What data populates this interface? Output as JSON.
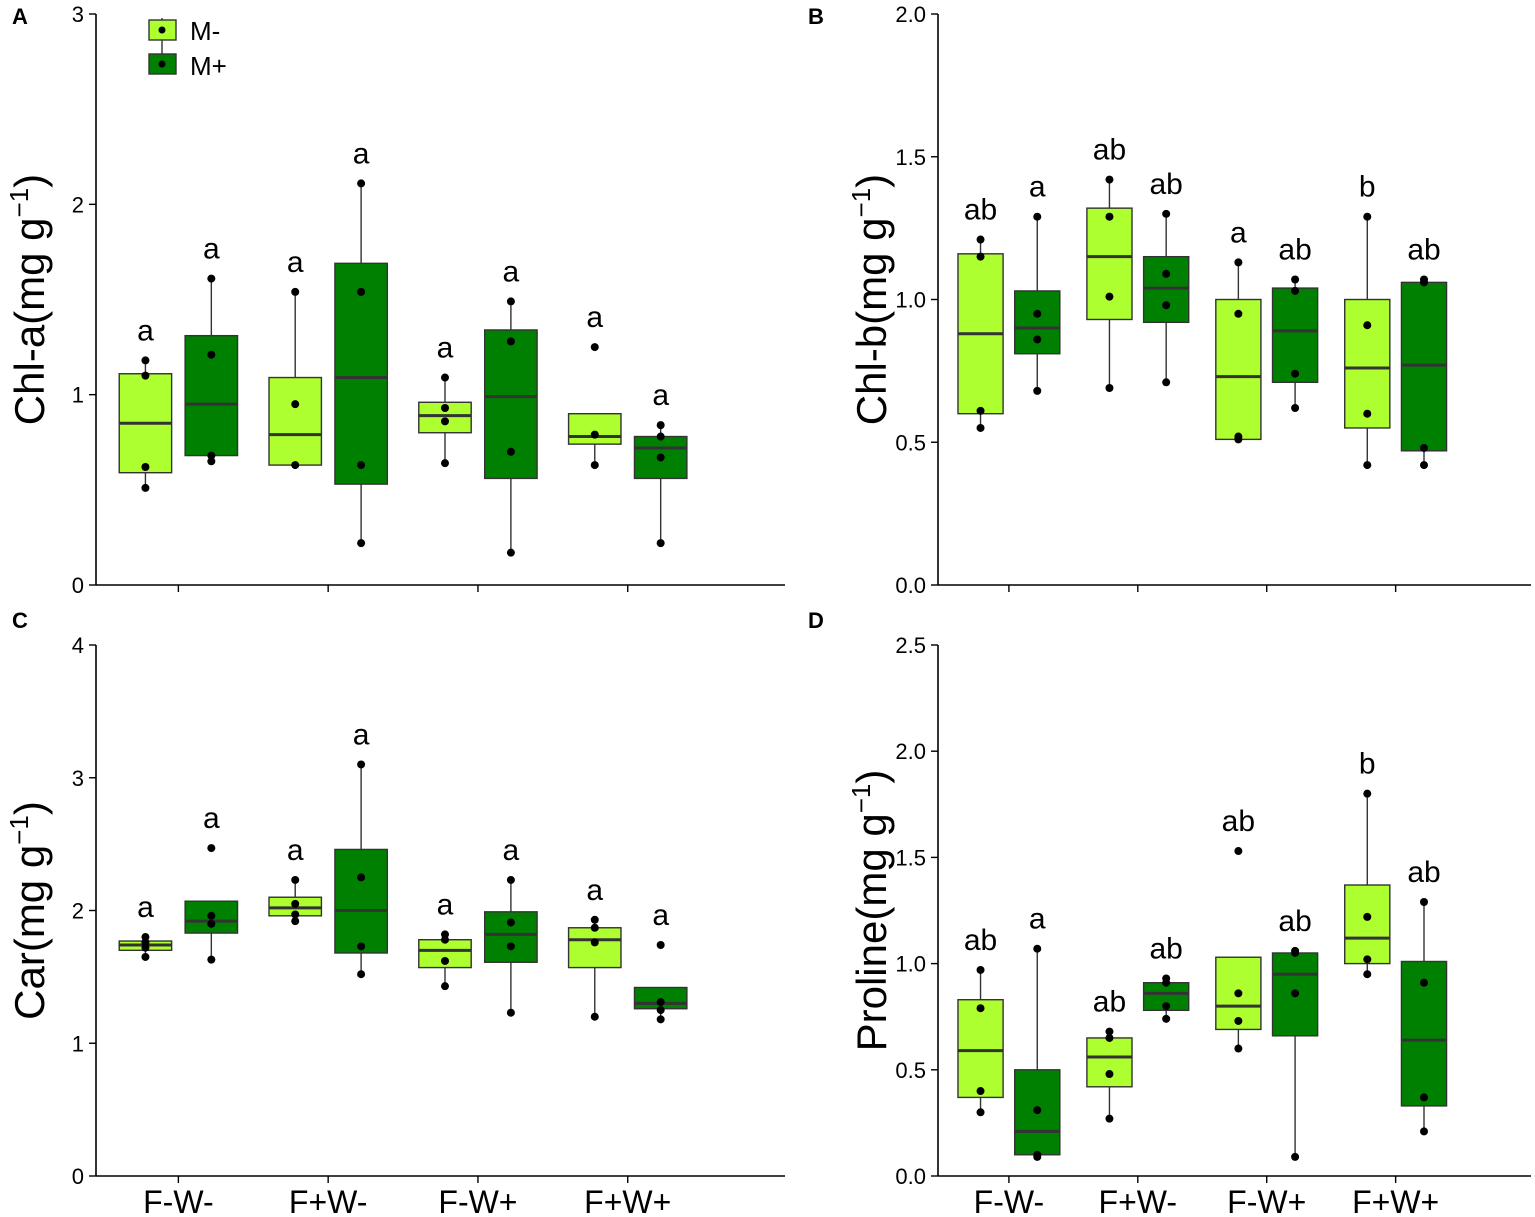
{
  "figure": {
    "groups": [
      "F-W-",
      "F+W-",
      "F-W+",
      "F+W+"
    ],
    "legend": {
      "position": "top-left of panel A",
      "items": [
        {
          "label": "M-",
          "color": "#adff2f"
        },
        {
          "label": "M+",
          "color": "#008000"
        }
      ]
    }
  },
  "chart_data": [
    {
      "panel": "A",
      "type": "box",
      "ylabel": "Chl-a",
      "yunit": "(mg g",
      "yunit_sup": "−1",
      "yunit_close": ")",
      "ylim": [
        0,
        3
      ],
      "yticks": [
        0,
        1,
        2,
        3
      ],
      "ytick_labels": [
        "0",
        "1",
        "2",
        "3"
      ],
      "series": [
        {
          "name": "M-",
          "color": "#adff2f",
          "boxes": [
            {
              "group": "F-W-",
              "low": 0.51,
              "q1": 0.59,
              "median": 0.85,
              "q3": 1.11,
              "high": 1.18,
              "points": [
                0.51,
                0.62,
                1.1,
                1.18
              ],
              "letter": "a"
            },
            {
              "group": "F+W-",
              "low": 0.63,
              "q1": 0.63,
              "median": 0.79,
              "q3": 1.09,
              "high": 1.54,
              "points": [
                0.63,
                0.95,
                1.54
              ],
              "letter": "a"
            },
            {
              "group": "F-W+",
              "low": 0.64,
              "q1": 0.8,
              "median": 0.89,
              "q3": 0.96,
              "high": 1.09,
              "points": [
                0.64,
                0.86,
                0.93,
                1.09
              ],
              "letter": "a"
            },
            {
              "group": "F+W+",
              "low": 0.63,
              "q1": 0.74,
              "median": 0.78,
              "q3": 0.9,
              "high": 0.9,
              "points": [
                0.63,
                0.79,
                1.25
              ],
              "letter": "a"
            }
          ]
        },
        {
          "name": "M+",
          "color": "#008000",
          "boxes": [
            {
              "group": "F-W-",
              "low": 0.65,
              "q1": 0.68,
              "median": 0.95,
              "q3": 1.31,
              "high": 1.61,
              "points": [
                0.65,
                0.68,
                1.21,
                1.61
              ],
              "letter": "a"
            },
            {
              "group": "F+W-",
              "low": 0.22,
              "q1": 0.53,
              "median": 1.09,
              "q3": 1.69,
              "high": 2.11,
              "points": [
                0.22,
                0.63,
                1.54,
                2.11
              ],
              "letter": "a"
            },
            {
              "group": "F-W+",
              "low": 0.17,
              "q1": 0.56,
              "median": 0.99,
              "q3": 1.34,
              "high": 1.49,
              "points": [
                0.17,
                0.7,
                1.28,
                1.49
              ],
              "letter": "a"
            },
            {
              "group": "F+W+",
              "low": 0.22,
              "q1": 0.56,
              "median": 0.72,
              "q3": 0.78,
              "high": 0.84,
              "points": [
                0.22,
                0.67,
                0.78,
                0.84
              ],
              "letter": "a"
            }
          ]
        }
      ]
    },
    {
      "panel": "B",
      "type": "box",
      "ylabel": "Chl-b",
      "yunit": "(mg g",
      "yunit_sup": "−1",
      "yunit_close": ")",
      "ylim": [
        0,
        2
      ],
      "yticks": [
        0,
        0.5,
        1,
        1.5,
        2
      ],
      "ytick_labels": [
        "0.0",
        "0.5",
        "1.0",
        "1.5",
        "2.0"
      ],
      "series": [
        {
          "name": "M-",
          "color": "#adff2f",
          "boxes": [
            {
              "group": "F-W-",
              "low": 0.55,
              "q1": 0.6,
              "median": 0.88,
              "q3": 1.16,
              "high": 1.21,
              "points": [
                0.55,
                0.61,
                1.15,
                1.21
              ],
              "letter": "ab"
            },
            {
              "group": "F+W-",
              "low": 0.69,
              "q1": 0.93,
              "median": 1.15,
              "q3": 1.32,
              "high": 1.42,
              "points": [
                0.69,
                1.01,
                1.29,
                1.42
              ],
              "letter": "ab"
            },
            {
              "group": "F-W+",
              "low": 0.51,
              "q1": 0.51,
              "median": 0.73,
              "q3": 1.0,
              "high": 1.13,
              "points": [
                0.51,
                0.52,
                0.95,
                1.13
              ],
              "letter": "a"
            },
            {
              "group": "F+W+",
              "low": 0.42,
              "q1": 0.55,
              "median": 0.76,
              "q3": 1.0,
              "high": 1.29,
              "points": [
                0.42,
                0.6,
                0.91,
                1.29
              ],
              "letter": "b"
            }
          ]
        },
        {
          "name": "M+",
          "color": "#008000",
          "boxes": [
            {
              "group": "F-W-",
              "low": 0.68,
              "q1": 0.81,
              "median": 0.9,
              "q3": 1.03,
              "high": 1.29,
              "points": [
                0.68,
                0.86,
                0.95,
                1.29
              ],
              "letter": "a"
            },
            {
              "group": "F+W-",
              "low": 0.71,
              "q1": 0.92,
              "median": 1.04,
              "q3": 1.15,
              "high": 1.3,
              "points": [
                0.71,
                0.98,
                1.09,
                1.3
              ],
              "letter": "ab"
            },
            {
              "group": "F-W+",
              "low": 0.62,
              "q1": 0.71,
              "median": 0.89,
              "q3": 1.04,
              "high": 1.07,
              "points": [
                0.62,
                0.74,
                1.03,
                1.07
              ],
              "letter": "ab"
            },
            {
              "group": "F+W+",
              "low": 0.42,
              "q1": 0.47,
              "median": 0.77,
              "q3": 1.06,
              "high": 1.07,
              "points": [
                0.42,
                0.48,
                1.06,
                1.07
              ],
              "letter": "ab"
            }
          ]
        }
      ]
    },
    {
      "panel": "C",
      "type": "box",
      "ylabel": "Car",
      "yunit": "(mg g",
      "yunit_sup": "−1",
      "yunit_close": ")",
      "ylim": [
        0,
        4
      ],
      "yticks": [
        0,
        1,
        2,
        3,
        4
      ],
      "ytick_labels": [
        "0",
        "1",
        "2",
        "3",
        "4"
      ],
      "series": [
        {
          "name": "M-",
          "color": "#adff2f",
          "boxes": [
            {
              "group": "F-W-",
              "low": 1.65,
              "q1": 1.7,
              "median": 1.74,
              "q3": 1.77,
              "high": 1.8,
              "points": [
                1.65,
                1.72,
                1.76,
                1.8
              ],
              "letter": "a"
            },
            {
              "group": "F+W-",
              "low": 1.92,
              "q1": 1.96,
              "median": 2.02,
              "q3": 2.1,
              "high": 2.23,
              "points": [
                1.92,
                1.97,
                2.05,
                2.23
              ],
              "letter": "a"
            },
            {
              "group": "F-W+",
              "low": 1.43,
              "q1": 1.57,
              "median": 1.7,
              "q3": 1.78,
              "high": 1.82,
              "points": [
                1.43,
                1.62,
                1.78,
                1.82
              ],
              "letter": "a"
            },
            {
              "group": "F+W+",
              "low": 1.2,
              "q1": 1.57,
              "median": 1.78,
              "q3": 1.87,
              "high": 1.93,
              "points": [
                1.2,
                1.76,
                1.87,
                1.93
              ],
              "letter": "a"
            }
          ]
        },
        {
          "name": "M+",
          "color": "#008000",
          "boxes": [
            {
              "group": "F-W-",
              "low": 1.63,
              "q1": 1.83,
              "median": 1.92,
              "q3": 2.07,
              "high": 2.07,
              "points": [
                1.63,
                1.9,
                1.96,
                2.47
              ],
              "letter": "a"
            },
            {
              "group": "F+W-",
              "low": 1.52,
              "q1": 1.68,
              "median": 2.0,
              "q3": 2.46,
              "high": 3.1,
              "points": [
                1.52,
                1.73,
                2.25,
                3.1
              ],
              "letter": "a"
            },
            {
              "group": "F-W+",
              "low": 1.23,
              "q1": 1.61,
              "median": 1.82,
              "q3": 1.99,
              "high": 2.23,
              "points": [
                1.23,
                1.73,
                1.91,
                2.23
              ],
              "letter": "a"
            },
            {
              "group": "F+W+",
              "low": 1.18,
              "q1": 1.26,
              "median": 1.3,
              "q3": 1.42,
              "high": 1.42,
              "points": [
                1.18,
                1.25,
                1.31,
                1.74
              ],
              "letter": "a"
            }
          ]
        }
      ]
    },
    {
      "panel": "D",
      "type": "box",
      "ylabel": "Proline",
      "yunit": "(mg g",
      "yunit_sup": "−1",
      "yunit_close": ")",
      "ylim": [
        0,
        2.5
      ],
      "yticks": [
        0,
        0.5,
        1,
        1.5,
        2,
        2.5
      ],
      "ytick_labels": [
        "0.0",
        "0.5",
        "1.0",
        "1.5",
        "2.0",
        "2.5"
      ],
      "series": [
        {
          "name": "M-",
          "color": "#adff2f",
          "boxes": [
            {
              "group": "F-W-",
              "low": 0.3,
              "q1": 0.37,
              "median": 0.59,
              "q3": 0.83,
              "high": 0.97,
              "points": [
                0.3,
                0.4,
                0.79,
                0.97
              ],
              "letter": "ab"
            },
            {
              "group": "F+W-",
              "low": 0.27,
              "q1": 0.42,
              "median": 0.56,
              "q3": 0.65,
              "high": 0.68,
              "points": [
                0.27,
                0.48,
                0.65,
                0.68
              ],
              "letter": "ab"
            },
            {
              "group": "F-W+",
              "low": 0.6,
              "q1": 0.69,
              "median": 0.8,
              "q3": 1.03,
              "high": 1.03,
              "points": [
                0.6,
                0.73,
                0.86,
                1.53
              ],
              "letter": "ab"
            },
            {
              "group": "F+W+",
              "low": 0.95,
              "q1": 1.0,
              "median": 1.12,
              "q3": 1.37,
              "high": 1.8,
              "points": [
                0.95,
                1.02,
                1.22,
                1.8
              ],
              "letter": "b"
            }
          ]
        },
        {
          "name": "M+",
          "color": "#008000",
          "boxes": [
            {
              "group": "F-W-",
              "low": 0.09,
              "q1": 0.1,
              "median": 0.21,
              "q3": 0.5,
              "high": 1.07,
              "points": [
                0.09,
                0.1,
                0.31,
                1.07
              ],
              "letter": "a"
            },
            {
              "group": "F+W-",
              "low": 0.74,
              "q1": 0.78,
              "median": 0.86,
              "q3": 0.91,
              "high": 0.93,
              "points": [
                0.74,
                0.8,
                0.91,
                0.93
              ],
              "letter": "ab"
            },
            {
              "group": "F-W+",
              "low": 0.09,
              "q1": 0.66,
              "median": 0.95,
              "q3": 1.05,
              "high": 1.05,
              "points": [
                0.09,
                0.86,
                1.05,
                1.06
              ],
              "letter": "ab"
            },
            {
              "group": "F+W+",
              "low": 0.21,
              "q1": 0.33,
              "median": 0.64,
              "q3": 1.01,
              "high": 1.29,
              "points": [
                0.21,
                0.37,
                0.91,
                1.29
              ],
              "letter": "ab"
            }
          ]
        }
      ]
    }
  ]
}
